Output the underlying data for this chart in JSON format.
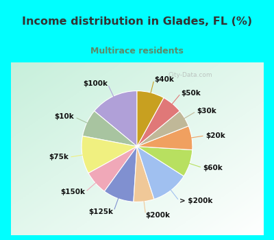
{
  "title": "Income distribution in Glades, FL (%)",
  "subtitle": "Multirace residents",
  "title_color": "#333333",
  "subtitle_color": "#5a8a6a",
  "bg_cyan": "#00ffff",
  "watermark": "City-Data.com",
  "labels": [
    "$100k",
    "$10k",
    "$75k",
    "$150k",
    "$125k",
    "$200k",
    "> $200k",
    "$60k",
    "$20k",
    "$30k",
    "$50k",
    "$40k"
  ],
  "values": [
    14,
    8,
    11,
    7,
    9,
    6,
    11,
    8,
    7,
    5,
    6,
    8
  ],
  "colors": [
    "#b0a0d8",
    "#a8c4a0",
    "#f0f080",
    "#f0a8b8",
    "#8090d0",
    "#f0c898",
    "#a0c0f0",
    "#b8e060",
    "#f0a060",
    "#c0b898",
    "#e07878",
    "#c8a020"
  ],
  "label_fontsize": 7.5,
  "figsize": [
    4.0,
    3.5
  ],
  "dpi": 100,
  "startangle": 90
}
